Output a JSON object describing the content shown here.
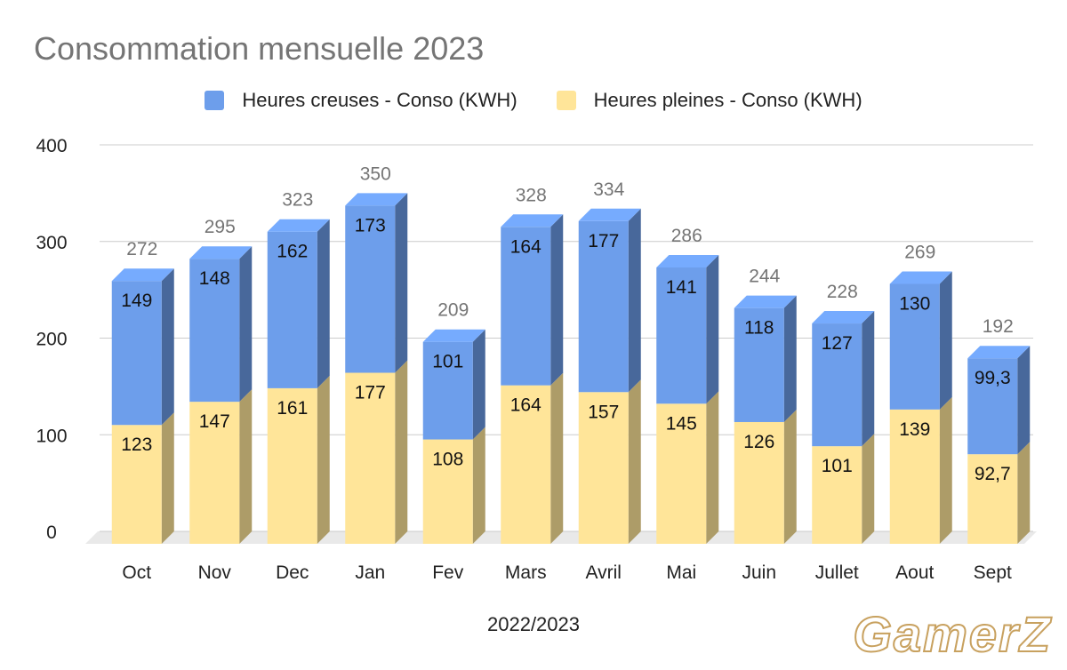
{
  "chart_data": {
    "type": "bar",
    "stacked": true,
    "title": "Consommation mensuelle 2023",
    "xlabel": "2022/2023",
    "ylabel": "",
    "ylim": [
      0,
      400
    ],
    "yticks": [
      "0",
      "100",
      "200",
      "300",
      "400"
    ],
    "grid": true,
    "legend_position": "top",
    "categories": [
      "Oct",
      "Nov",
      "Dec",
      "Jan",
      "Fev",
      "Mars",
      "Avril",
      "Mai",
      "Juin",
      "Jullet",
      "Aout",
      "Sept"
    ],
    "series": [
      {
        "name": "Heures creuses - Conso (KWH)",
        "color": "#6d9eeb",
        "values": [
          149,
          148,
          162,
          173,
          101,
          164,
          177,
          141,
          118,
          127,
          130,
          99.3
        ],
        "labels": [
          "149",
          "148",
          "162",
          "173",
          "101",
          "164",
          "177",
          "141",
          "118",
          "127",
          "130",
          "99,3"
        ]
      },
      {
        "name": "Heures pleines - Conso (KWH)",
        "color": "#ffe599",
        "values": [
          123,
          147,
          161,
          177,
          108,
          164,
          157,
          145,
          126,
          101,
          139,
          92.7
        ],
        "labels": [
          "123",
          "147",
          "161",
          "177",
          "108",
          "164",
          "157",
          "145",
          "126",
          "101",
          "139",
          "92,7"
        ]
      }
    ],
    "totals": [
      272,
      295,
      323,
      350,
      209,
      328,
      334,
      286,
      244,
      228,
      269,
      192
    ],
    "total_labels": [
      "272",
      "295",
      "323",
      "350",
      "209",
      "328",
      "334",
      "286",
      "244",
      "228",
      "269",
      "192"
    ]
  },
  "watermark": "GamerZ"
}
